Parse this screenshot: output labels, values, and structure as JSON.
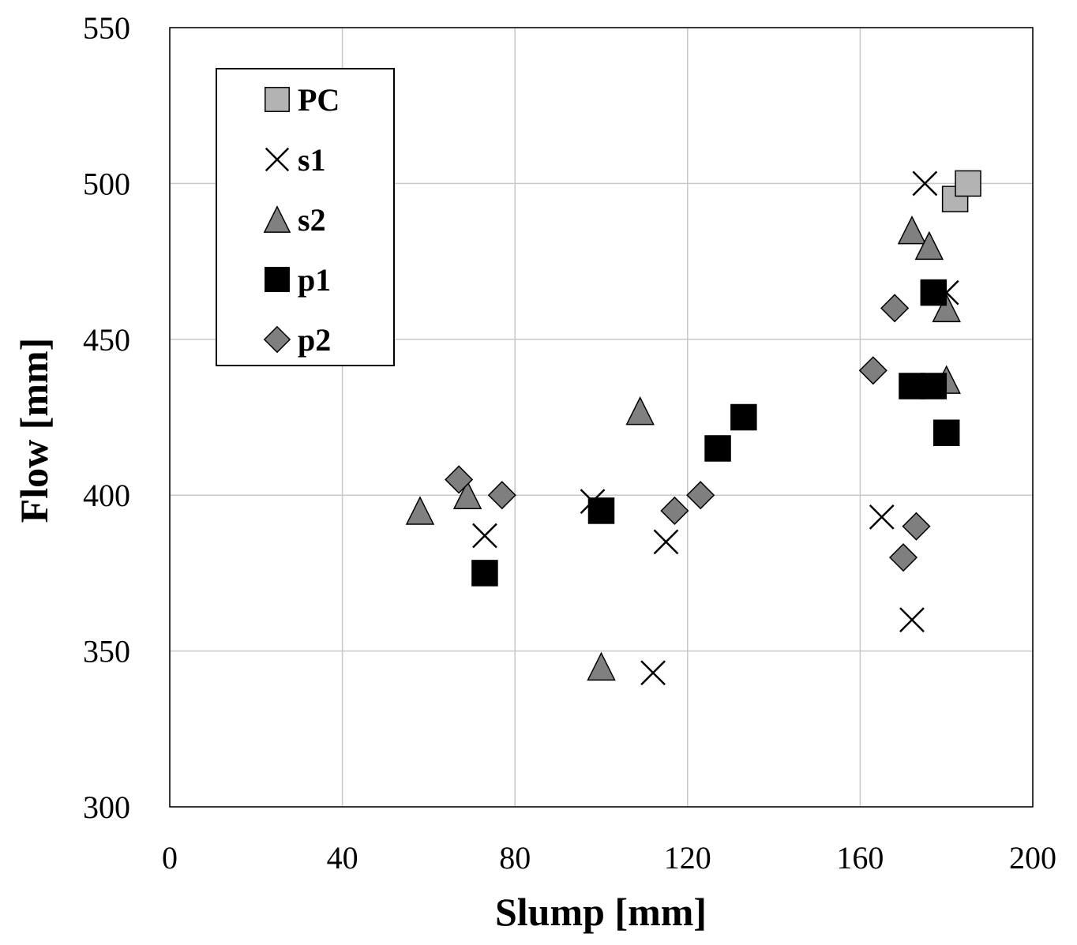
{
  "chart_data": {
    "type": "scatter",
    "title": "",
    "xlabel": "Slump [mm]",
    "ylabel": "Flow [mm]",
    "xlim": [
      0,
      200
    ],
    "ylim": [
      300,
      550
    ],
    "xticks": [
      0,
      40,
      80,
      120,
      160,
      200
    ],
    "yticks": [
      300,
      350,
      400,
      450,
      500,
      550
    ],
    "grid": true,
    "legend_position": "top-left",
    "series": [
      {
        "name": "PC",
        "marker": "square",
        "fill": "#b3b3b3",
        "points": [
          [
            182,
            495
          ],
          [
            185,
            500
          ]
        ]
      },
      {
        "name": "s1",
        "marker": "x",
        "fill": "#000000",
        "points": [
          [
            73,
            387
          ],
          [
            98,
            398
          ],
          [
            112,
            343
          ],
          [
            115,
            385
          ],
          [
            165,
            393
          ],
          [
            172,
            360
          ],
          [
            175,
            500
          ],
          [
            180,
            465
          ]
        ]
      },
      {
        "name": "s2",
        "marker": "triangle",
        "fill": "#808080",
        "points": [
          [
            58,
            395
          ],
          [
            69,
            400
          ],
          [
            100,
            345
          ],
          [
            109,
            427
          ],
          [
            172,
            485
          ],
          [
            176,
            480
          ],
          [
            180,
            460
          ],
          [
            180,
            437
          ]
        ]
      },
      {
        "name": "p1",
        "marker": "square",
        "fill": "#000000",
        "points": [
          [
            73,
            375
          ],
          [
            100,
            395
          ],
          [
            127,
            415
          ],
          [
            133,
            425
          ],
          [
            172,
            435
          ],
          [
            177,
            435
          ],
          [
            177,
            465
          ],
          [
            180,
            420
          ]
        ]
      },
      {
        "name": "p2",
        "marker": "diamond",
        "fill": "#7f7f7f",
        "points": [
          [
            67,
            405
          ],
          [
            77,
            400
          ],
          [
            117,
            395
          ],
          [
            123,
            400
          ],
          [
            163,
            440
          ],
          [
            168,
            460
          ],
          [
            170,
            380
          ],
          [
            173,
            390
          ]
        ]
      }
    ]
  }
}
